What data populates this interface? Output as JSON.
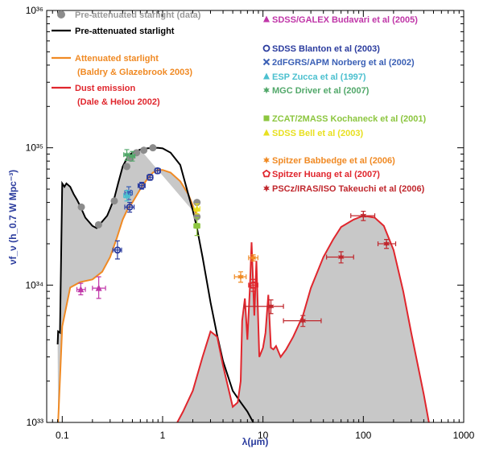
{
  "chart_data": {
    "type": "line",
    "xscale": "log",
    "yscale": "log",
    "xlim": [
      0.07,
      1000
    ],
    "ylim": [
      1e+33,
      1e+36
    ],
    "xlabel": "λ(μm)",
    "ylabel": "νf_ν (h_0.7 W Mpc⁻³)",
    "xticks": [
      "0.1",
      "1",
      "10",
      "100",
      "1000"
    ],
    "yticks": [
      "10³³",
      "10³⁴",
      "10³⁵",
      "10³⁶"
    ],
    "curves": [
      {
        "name": "Pre-attenuated starlight",
        "color": "#000000",
        "x": [
          0.09,
          0.091,
          0.095,
          0.1,
          0.105,
          0.11,
          0.12,
          0.13,
          0.14,
          0.15,
          0.17,
          0.2,
          0.22,
          0.25,
          0.28,
          0.3,
          0.33,
          0.36,
          0.4,
          0.45,
          0.5,
          0.6,
          0.7,
          0.8,
          0.9,
          1.0,
          1.2,
          1.5,
          1.8,
          2.0,
          2.2,
          2.5,
          3,
          3.5,
          4,
          5,
          6,
          7,
          8
        ],
        "y": [
          3.7e+33,
          4.6e+33,
          4.5e+33,
          5.5e+34,
          5.2e+34,
          5.5e+34,
          5.2e+34,
          4.6e+34,
          4.2e+34,
          3.8e+34,
          3.1e+34,
          2.7e+34,
          2.6e+34,
          2.9e+34,
          3.2e+34,
          3.6e+34,
          4.3e+34,
          5.5e+34,
          7.3e+34,
          8.6e+34,
          9.2e+34,
          9.7e+34,
          9.9e+34,
          1e+35,
          1e+35,
          9.9e+34,
          9.2e+34,
          7.5e+34,
          4.6e+34,
          3.5e+34,
          2.6e+34,
          1.6e+34,
          7.5e+33,
          4.3e+33,
          2.8e+33,
          1.7e+33,
          1.4e+33,
          1.2e+33,
          1e+33
        ]
      },
      {
        "name": "Attenuated starlight",
        "color": "#f08a24",
        "x": [
          0.091,
          0.1,
          0.12,
          0.15,
          0.2,
          0.25,
          0.3,
          0.35,
          0.4,
          0.45,
          0.5,
          0.6,
          0.7,
          0.8,
          0.9,
          1.0,
          1.2,
          1.5,
          1.8,
          2.0,
          2.2
        ],
        "y": [
          1e+33,
          5e+33,
          9.6e+33,
          1.05e+34,
          1.1e+34,
          1.25e+34,
          1.6e+34,
          2.2e+34,
          3e+34,
          3.6e+34,
          4e+34,
          5e+34,
          5.9e+34,
          6.6e+34,
          6.9e+34,
          6.9e+34,
          6.6e+34,
          5.7e+34,
          4.6e+34,
          3.8e+34,
          3.2e+34
        ]
      },
      {
        "name": "Dust emission",
        "color": "#e0262d",
        "x": [
          1.4,
          1.6,
          2.0,
          2.5,
          3.0,
          3.5,
          4.0,
          4.5,
          5.0,
          5.6,
          6.0,
          6.2,
          6.6,
          7.0,
          7.4,
          7.7,
          8.2,
          8.6,
          9.2,
          10,
          10.6,
          11.3,
          12,
          12.7,
          13.5,
          15,
          17,
          20,
          25,
          30,
          40,
          50,
          60,
          80,
          100,
          130,
          160,
          200,
          250,
          300,
          400,
          450
        ],
        "y": [
          1e+33,
          1.2e+33,
          1.7e+33,
          3e+33,
          4.6e+33,
          4.2e+33,
          2.6e+33,
          1.8e+33,
          1.3e+33,
          1.4e+33,
          2e+33,
          5.5e+33,
          8e+33,
          4e+33,
          9.5e+33,
          2.05e+34,
          6e+33,
          1.5e+34,
          3e+33,
          3.5e+33,
          4.5e+33,
          8.5e+33,
          3.5e+33,
          3.4e+33,
          3.6e+33,
          3e+33,
          3.4e+33,
          4.2e+33,
          6e+33,
          9.5e+33,
          1.6e+34,
          2.15e+34,
          2.65e+34,
          3e+34,
          3.2e+34,
          3.1e+34,
          2.7e+34,
          1.8e+34,
          9e+33,
          4.5e+33,
          1.6e+33,
          1e+33
        ]
      }
    ],
    "gray_points": [
      {
        "x": 0.155,
        "y": 3.7e+34
      },
      {
        "x": 0.23,
        "y": 2.75e+34
      },
      {
        "x": 0.33,
        "y": 4.1e+34
      },
      {
        "x": 0.44,
        "y": 7.3e+34
      },
      {
        "x": 0.48,
        "y": 8.4e+34
      },
      {
        "x": 0.55,
        "y": 9.2e+34
      },
      {
        "x": 0.65,
        "y": 9.6e+34
      },
      {
        "x": 0.8,
        "y": 1e+35
      },
      {
        "x": 2.2,
        "y": 4e+34
      },
      {
        "x": 2.2,
        "y": 3.15e+34
      }
    ],
    "datasets": [
      {
        "name": "SDSS/GALEX Budavari et al (2005)",
        "color": "#c036a8",
        "marker": "triangle",
        "points": [
          {
            "x": 0.153,
            "y": 9.3e+33,
            "xerr": [
              0.14,
              0.17
            ],
            "yerr": [
              8.5e+33,
              1.03e+34
            ]
          },
          {
            "x": 0.231,
            "y": 9.5e+33,
            "xerr": [
              0.2,
              0.27
            ],
            "yerr": [
              8e+33,
              1.15e+34
            ]
          }
        ]
      },
      {
        "name": "SDSS Blanton et al (2003)",
        "color": "#2b3c9e",
        "marker": "circle",
        "points": [
          {
            "x": 0.355,
            "y": 1.8e+34,
            "xerr": [
              0.32,
              0.39
            ],
            "yerr": [
              1.55e+34,
              2.1e+34
            ]
          },
          {
            "x": 0.47,
            "y": 3.7e+34,
            "xerr": [
              0.42,
              0.52
            ],
            "yerr": [
              3.4e+34,
              4e+34
            ]
          },
          {
            "x": 0.62,
            "y": 5.3e+34,
            "xerr": [
              0.57,
              0.67
            ],
            "yerr": [
              5e+34,
              5.6e+34
            ]
          },
          {
            "x": 0.75,
            "y": 6.1e+34,
            "xerr": [
              0.7,
              0.8
            ],
            "yerr": [
              5.8e+34,
              6.4e+34
            ]
          },
          {
            "x": 0.89,
            "y": 6.8e+34,
            "xerr": [
              0.84,
              0.95
            ],
            "yerr": [
              6.5e+34,
              7.1e+34
            ]
          }
        ]
      },
      {
        "name": "2dFGRS/APM Norberg et al (2002)",
        "color": "#3a5fb5",
        "marker": "cross",
        "points": [
          {
            "x": 0.46,
            "y": 4.7e+34,
            "xerr": [
              0.42,
              0.5
            ],
            "yerr": [
              4.2e+34,
              5.2e+34
            ]
          }
        ]
      },
      {
        "name": "ESP Zucca et al (1997)",
        "color": "#4cc0cf",
        "marker": "triangle",
        "points": [
          {
            "x": 0.44,
            "y": 4.5e+34,
            "xerr": [
              0.41,
              0.47
            ],
            "yerr": [
              4.1e+34,
              4.9e+34
            ]
          }
        ]
      },
      {
        "name": "MGC Driver et al (2007)",
        "color": "#52a86a",
        "marker": "star",
        "points": [
          {
            "x": 0.44,
            "y": 8.9e+34,
            "xerr": [
              0.41,
              0.47
            ],
            "yerr": [
              8.1e+34,
              9.7e+34
            ]
          },
          {
            "x": 0.5,
            "y": 8.7e+34,
            "xerr": [
              0.47,
              0.53
            ],
            "yerr": [
              8e+34,
              9.4e+34
            ]
          }
        ]
      },
      {
        "name": "ZCAT/2MASS Kochaneck et al (2001)",
        "color": "#8cc63f",
        "marker": "square",
        "points": [
          {
            "x": 2.2,
            "y": 2.7e+34,
            "xerr": [
              2.05,
              2.35
            ],
            "yerr": [
              2.3e+34,
              3.1e+34
            ]
          }
        ]
      },
      {
        "name": "SDSS Bell et al (2003)",
        "color": "#e8e020",
        "marker": "triangle",
        "points": [
          {
            "x": 2.2,
            "y": 3.6e+34,
            "xerr": [
              2.05,
              2.35
            ],
            "yerr": [
              3.3e+34,
              3.9e+34
            ]
          }
        ]
      },
      {
        "name": "Spitzer Babbedge et al (2006)",
        "color": "#f08a24",
        "marker": "star",
        "points": [
          {
            "x": 6.0,
            "y": 1.15e+34,
            "xerr": [
              5.2,
              6.8
            ],
            "yerr": [
              1.05e+34,
              1.25e+34
            ]
          },
          {
            "x": 8.0,
            "y": 1.58e+34,
            "xerr": [
              7.2,
              8.9
            ],
            "yerr": [
              1.5e+34,
              1.66e+34
            ]
          }
        ]
      },
      {
        "name": "Spitzer Huang et al (2007)",
        "color": "#e0262d",
        "marker": "pentagon",
        "points": [
          {
            "x": 8.0,
            "y": 1e+34,
            "xerr": [
              7.2,
              8.9
            ],
            "yerr": [
              9e+33,
              1.1e+34
            ]
          }
        ]
      },
      {
        "name": "PSCz/IRAS/ISO Takeuchi et al (2006)",
        "color": "#c0272d",
        "marker": "star",
        "points": [
          {
            "x": 12,
            "y": 7e+33,
            "xerr": [
              6.5,
              16
            ],
            "yerr": [
              6.2e+33,
              7.8e+33
            ]
          },
          {
            "x": 25,
            "y": 5.5e+33,
            "xerr": [
              16,
              38
            ],
            "yerr": [
              5e+33,
              6e+33
            ]
          },
          {
            "x": 60,
            "y": 1.6e+34,
            "xerr": [
              43,
              80
            ],
            "yerr": [
              1.45e+34,
              1.75e+34
            ]
          },
          {
            "x": 100,
            "y": 3.2e+34,
            "xerr": [
              75,
              130
            ],
            "yerr": [
              2.95e+34,
              3.45e+34
            ]
          },
          {
            "x": 170,
            "y": 2e+34,
            "xerr": [
              140,
              210
            ],
            "yerr": [
              1.85e+34,
              2.15e+34
            ]
          }
        ]
      }
    ],
    "legend_left": [
      {
        "text": "Pre-attenuated starlight (data)",
        "color": "#999999",
        "kind": "dot"
      },
      {
        "text": "Pre-attenuated starlight",
        "color": "#000000",
        "kind": "line"
      },
      {
        "text": "Attenuated starlight",
        "color": "#f08a24",
        "kind": "line"
      },
      {
        "text": "(Baldry & Glazebrook 2003)",
        "color": "#f08a24",
        "kind": "none"
      },
      {
        "text": "Dust emission",
        "color": "#e0262d",
        "kind": "line"
      },
      {
        "text": "(Dale & Helou 2002)",
        "color": "#e0262d",
        "kind": "none"
      }
    ]
  }
}
